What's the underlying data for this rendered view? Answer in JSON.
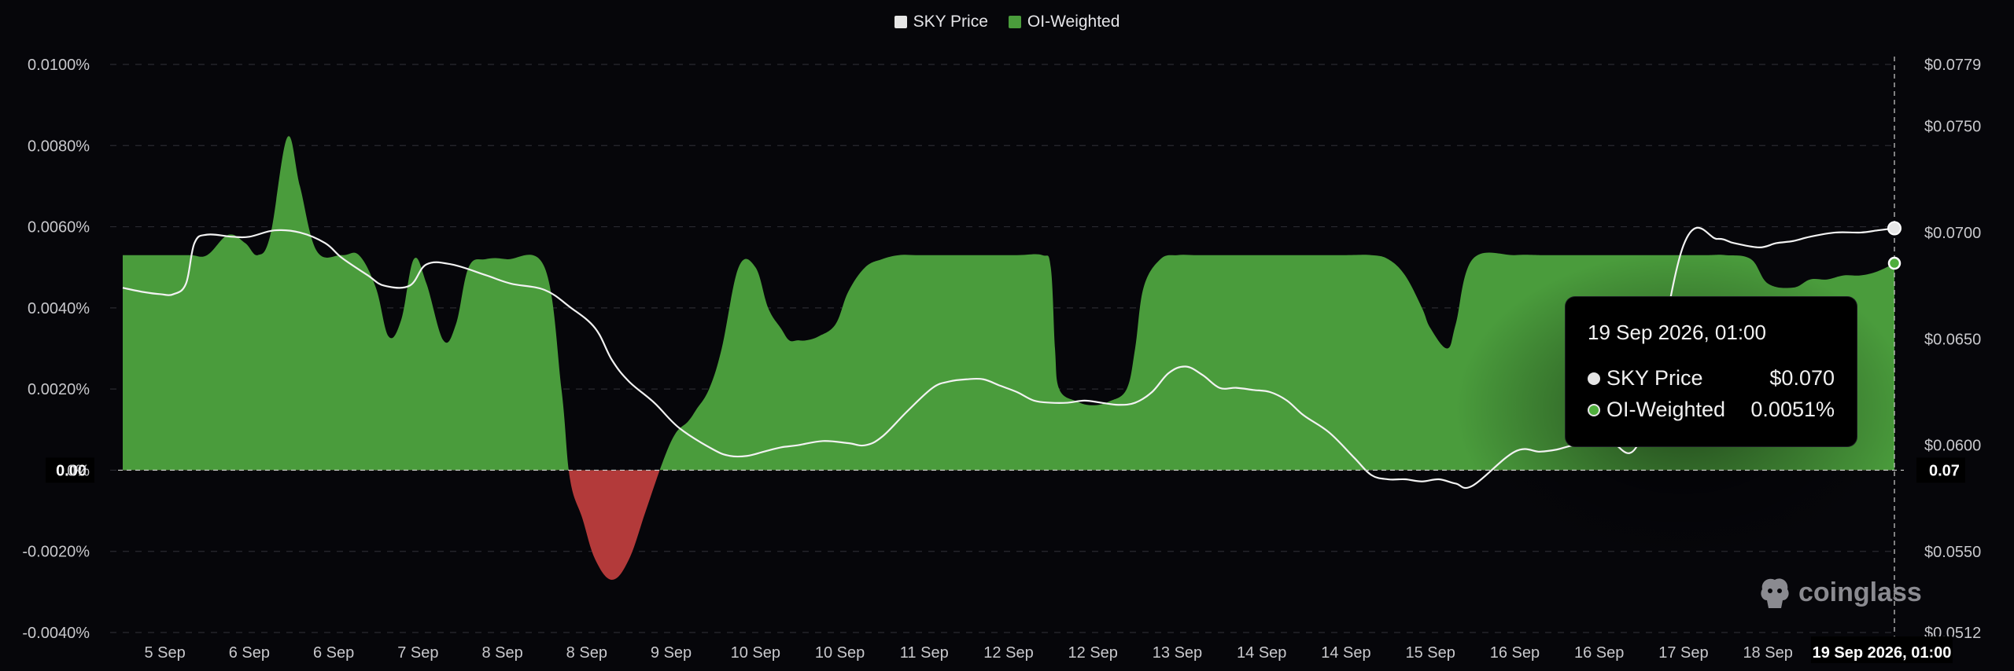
{
  "legend": [
    {
      "label": "SKY Price",
      "color": "#e6e6e6"
    },
    {
      "label": "OI-Weighted",
      "color": "#4a9c3c"
    }
  ],
  "left_axis_labels": [
    "0.0100%",
    "0.0080%",
    "0.0060%",
    "0.0040%",
    "0.0020%",
    "0%",
    "-0.0020%",
    "-0.0040%"
  ],
  "right_axis_labels": [
    "$0.0779",
    "$0.0750",
    "$0.0700",
    "$0.0650",
    "$0.0600",
    "$0.0550",
    "$0.0512"
  ],
  "left_crosshair_label": "0.00",
  "right_crosshair_label": "0.07",
  "tooltip": {
    "title": "19 Sep 2026, 01:00",
    "rows": [
      {
        "label": "SKY Price",
        "value": "$0.070",
        "dot": "#e6e6e6"
      },
      {
        "label": "OI-Weighted",
        "value": "0.0051%",
        "dot": "#4fae3c"
      }
    ]
  },
  "watermark": "coinglass",
  "colors": {
    "positive_fill": "#4a9c3c",
    "negative_fill": "#b33a3a",
    "price_line": "#f2f2f2",
    "grid": "#2a2a30",
    "background": "#06060a"
  },
  "chart_data": {
    "type": "area",
    "x_labels": [
      "5 Sep",
      "6 Sep",
      "6 Sep",
      "7 Sep",
      "8 Sep",
      "8 Sep",
      "9 Sep",
      "10 Sep",
      "10 Sep",
      "11 Sep",
      "12 Sep",
      "12 Sep",
      "13 Sep",
      "14 Sep",
      "14 Sep",
      "15 Sep",
      "16 Sep",
      "16 Sep",
      "17 Sep",
      "18 Sep",
      "19 Sep 2026, 01:00"
    ],
    "ylim_left": [
      -0.004,
      0.01
    ],
    "ylim_right": [
      0.0512,
      0.0779
    ],
    "grid": true,
    "legend_position": "top-center",
    "series": [
      {
        "name": "OI-Weighted",
        "axis": "left",
        "x": [
          0,
          0.5,
          0.8,
          1.0,
          1.25,
          1.45,
          1.6,
          1.75,
          1.95,
          2.1,
          2.3,
          2.6,
          2.8,
          3.0,
          3.15,
          3.3,
          3.45,
          3.6,
          3.8,
          3.95,
          4.1,
          4.3,
          4.55,
          5.0,
          5.2,
          5.3,
          5.45,
          5.6,
          5.8,
          6.0,
          6.2,
          6.4,
          6.55,
          6.7,
          6.8,
          6.95,
          7.1,
          7.3,
          7.5,
          7.65,
          7.8,
          7.9,
          8.0,
          8.1,
          8.25,
          8.45,
          8.6,
          8.8,
          9.0,
          9.2,
          9.4,
          9.6,
          9.8,
          10.0,
          10.2,
          10.6,
          10.9,
          11.0,
          11.05,
          11.1,
          11.3,
          11.5,
          11.7,
          11.9,
          12.0,
          12.1,
          12.3,
          12.5,
          12.7,
          12.8,
          12.9,
          13.0,
          13.2,
          13.4,
          13.6,
          14.0,
          14.5,
          14.8,
          15.0,
          15.2,
          15.4,
          15.5,
          15.7,
          15.8,
          16.0,
          16.5,
          16.8,
          16.9,
          17.0,
          17.1,
          17.2,
          17.4,
          17.6,
          17.8,
          18.0,
          18.3,
          18.6,
          18.8,
          19.0,
          19.3,
          19.5,
          19.8,
          20.0,
          20.2,
          20.4,
          20.6,
          20.8,
          21.0
        ],
        "values": [
          0.0053,
          0.0053,
          0.0053,
          0.0053,
          0.0058,
          0.0056,
          0.0053,
          0.0058,
          0.0082,
          0.007,
          0.0054,
          0.0053,
          0.0053,
          0.0045,
          0.0033,
          0.0037,
          0.0052,
          0.0046,
          0.0032,
          0.0036,
          0.005,
          0.0052,
          0.0052,
          0.005,
          0.002,
          -0.0002,
          -0.0012,
          -0.0022,
          -0.0027,
          -0.0022,
          -0.001,
          0.0002,
          0.0009,
          0.0012,
          0.0015,
          0.002,
          0.003,
          0.005,
          0.005,
          0.004,
          0.0035,
          0.0032,
          0.0032,
          0.0032,
          0.0033,
          0.0036,
          0.0044,
          0.005,
          0.0052,
          0.0053,
          0.0053,
          0.0053,
          0.0053,
          0.0053,
          0.0053,
          0.0053,
          0.0053,
          0.005,
          0.003,
          0.002,
          0.0017,
          0.0016,
          0.0017,
          0.002,
          0.003,
          0.0045,
          0.0052,
          0.0053,
          0.0053,
          0.0053,
          0.0053,
          0.0053,
          0.0053,
          0.0053,
          0.0053,
          0.0053,
          0.0053,
          0.0053,
          0.0052,
          0.0048,
          0.004,
          0.0035,
          0.003,
          0.0036,
          0.0052,
          0.0053,
          0.0053,
          0.0053,
          0.0053,
          0.0053,
          0.0053,
          0.0053,
          0.0053,
          0.0053,
          0.0053,
          0.0053,
          0.0053,
          0.0053,
          0.0053,
          0.0052,
          0.0046,
          0.0045,
          0.0047,
          0.0047,
          0.0048,
          0.0048,
          0.0049,
          0.0051
        ]
      },
      {
        "name": "SKY Price",
        "axis": "right",
        "x": [
          0,
          0.25,
          0.45,
          0.6,
          0.75,
          0.85,
          1.0,
          1.3,
          1.5,
          1.8,
          2.1,
          2.4,
          2.6,
          2.9,
          3.1,
          3.4,
          3.6,
          3.9,
          4.3,
          4.6,
          5.0,
          5.3,
          5.6,
          5.8,
          6.0,
          6.3,
          6.6,
          7.0,
          7.2,
          7.4,
          7.6,
          7.8,
          8.0,
          8.3,
          8.6,
          8.8,
          9.0,
          9.3,
          9.6,
          9.8,
          10.0,
          10.2,
          10.4,
          10.6,
          10.8,
          11.0,
          11.2,
          11.4,
          11.6,
          11.8,
          12.0,
          12.2,
          12.4,
          12.6,
          12.8,
          13.0,
          13.2,
          13.4,
          13.6,
          13.8,
          14.0,
          14.3,
          14.6,
          14.8,
          15.0,
          15.2,
          15.4,
          15.6,
          15.8,
          16.0,
          16.5,
          16.8,
          17.0,
          17.2,
          17.6,
          18.0,
          18.5,
          18.9,
          19.1,
          19.4,
          19.6,
          19.8,
          20.0,
          20.3,
          20.6,
          20.8,
          21.0
        ],
        "values": [
          0.0674,
          0.0672,
          0.0671,
          0.0671,
          0.0676,
          0.0695,
          0.0699,
          0.0698,
          0.0698,
          0.0701,
          0.07,
          0.0695,
          0.0688,
          0.068,
          0.0675,
          0.0675,
          0.0685,
          0.0685,
          0.068,
          0.0676,
          0.0673,
          0.0665,
          0.0655,
          0.064,
          0.063,
          0.062,
          0.0608,
          0.0598,
          0.0595,
          0.0595,
          0.0597,
          0.0599,
          0.06,
          0.0602,
          0.0601,
          0.06,
          0.0604,
          0.0616,
          0.0627,
          0.063,
          0.0631,
          0.0631,
          0.0628,
          0.0625,
          0.0621,
          0.062,
          0.062,
          0.0621,
          0.062,
          0.0619,
          0.062,
          0.0625,
          0.0634,
          0.0637,
          0.0633,
          0.0627,
          0.0627,
          0.0626,
          0.0625,
          0.0621,
          0.0614,
          0.0606,
          0.0594,
          0.0586,
          0.0584,
          0.0584,
          0.0583,
          0.0584,
          0.0582,
          0.0581,
          0.0597,
          0.0597,
          0.0598,
          0.06,
          0.0602,
          0.0604,
          0.0694,
          0.0697,
          0.0695,
          0.0693,
          0.0695,
          0.0696,
          0.0698,
          0.07,
          0.07,
          0.0701,
          0.0702
        ]
      }
    ]
  }
}
